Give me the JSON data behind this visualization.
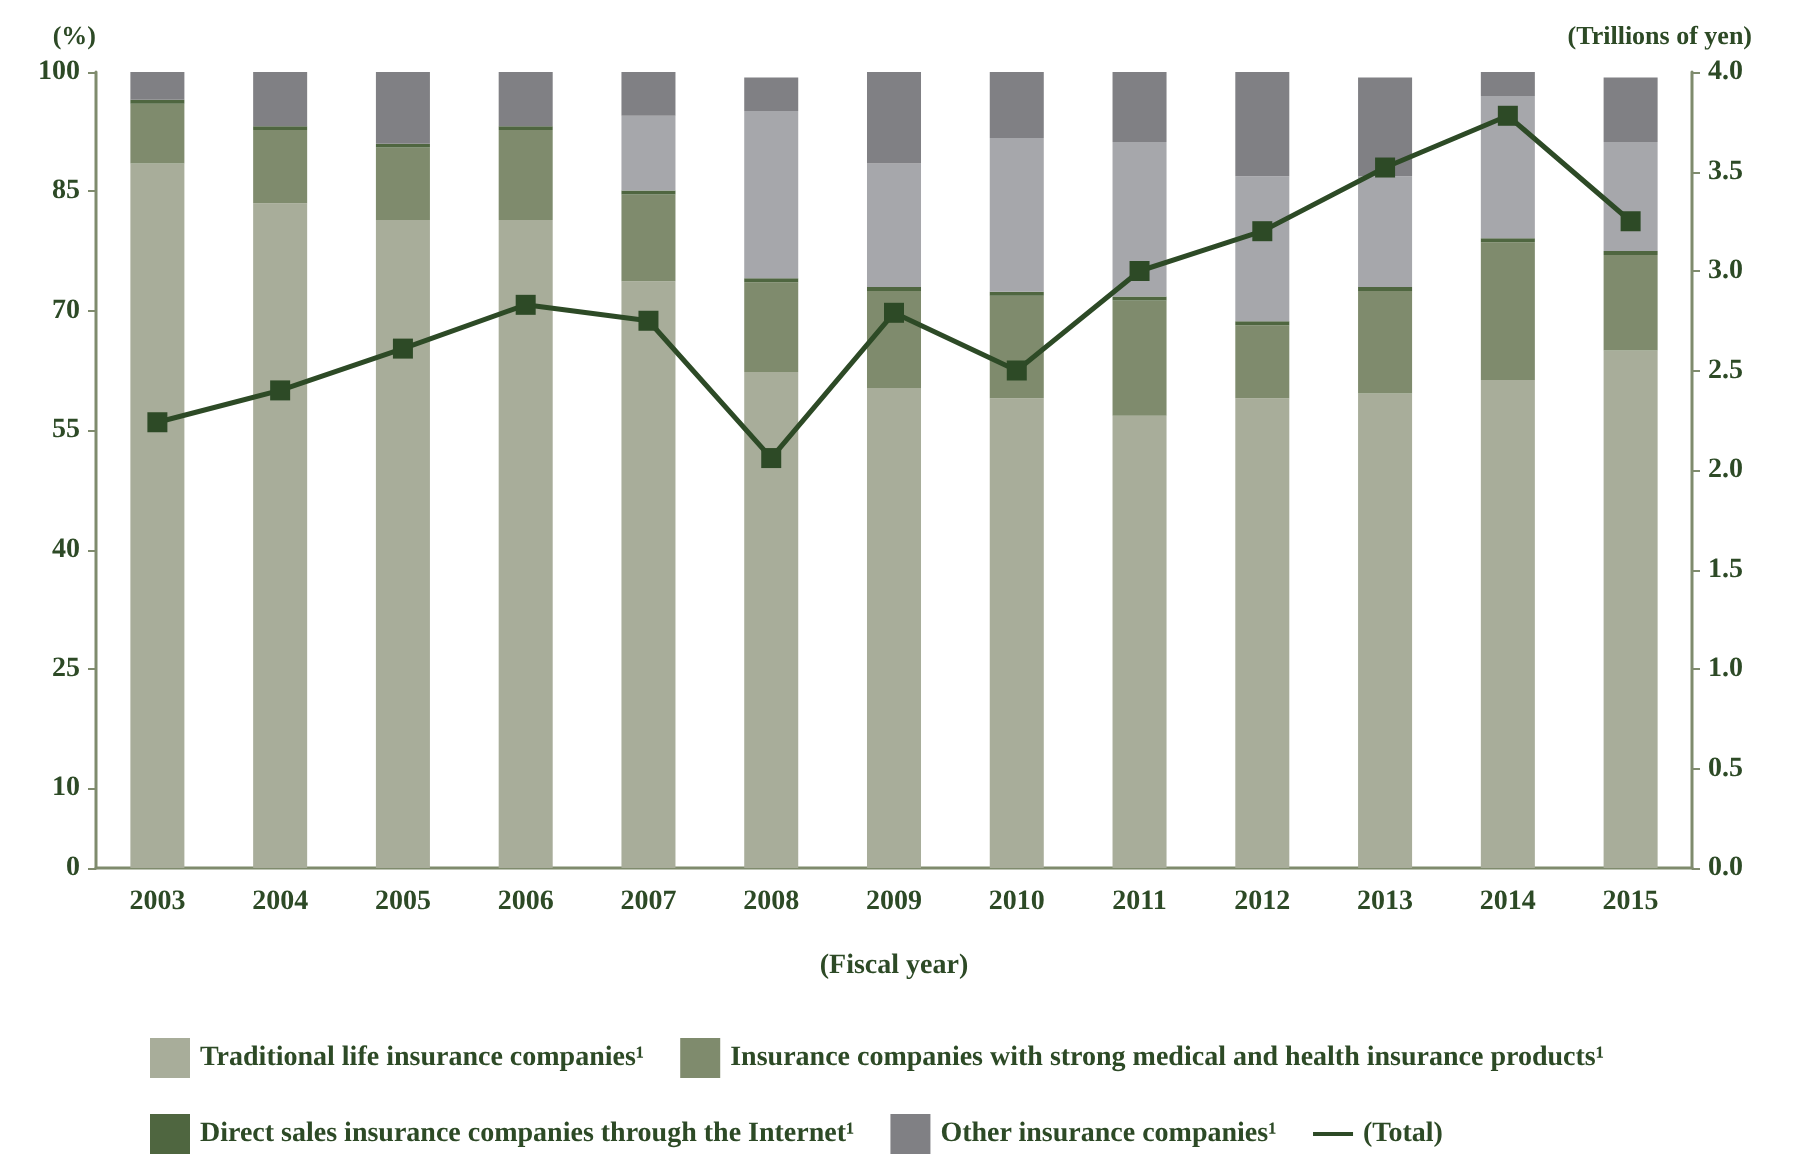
{
  "chart_data": {
    "type": "bar",
    "stacked": true,
    "xlabel": "(Fiscal year)",
    "ylabel": "(%)",
    "y2label": "(Trillions of yen)",
    "categories": [
      "2003",
      "2004",
      "2005",
      "2006",
      "2007",
      "2008",
      "2009",
      "2010",
      "2011",
      "2012",
      "2013",
      "2014",
      "2015"
    ],
    "series": [
      {
        "name": "Traditional life insurance companies¹",
        "color": "#a8ad9a",
        "values": [
          88.5,
          83.5,
          81.4,
          81.4,
          73.7,
          62.3,
          60.3,
          59.0,
          56.8,
          59.0,
          59.6,
          61.3,
          65.0
        ]
      },
      {
        "name": "Insurance companies with strong medical and health insurance products¹",
        "color": "#7f8b6d",
        "values": [
          7.5,
          9.2,
          9.1,
          11.3,
          10.9,
          11.3,
          12.2,
          12.9,
          14.5,
          9.2,
          12.9,
          17.3,
          12.0
        ]
      },
      {
        "name": "Direct sales insurance companies through the Internet¹",
        "color": "#4f6640",
        "values": [
          0.5,
          0.5,
          0.5,
          0.5,
          0.5,
          0.5,
          0.5,
          0.5,
          0.5,
          0.5,
          0.5,
          0.5,
          0.5
        ]
      },
      {
        "color": "#a6a7ab",
        "values": [
          0,
          0,
          0,
          0,
          9.4,
          21.0,
          15.5,
          19.3,
          19.4,
          18.2,
          13.9,
          17.9,
          13.7
        ]
      },
      {
        "name": "Other insurance companies¹",
        "color": "#808084",
        "values": [
          3.5,
          6.8,
          9.0,
          6.8,
          5.5,
          4.2,
          11.5,
          8.3,
          8.8,
          13.1,
          12.4,
          3.0,
          8.1
        ]
      },
      {
        "name": "(Total)",
        "type": "line",
        "axis": "y2",
        "color": "#2d4a26",
        "marker": "square",
        "values": [
          2.24,
          2.4,
          2.61,
          2.83,
          2.75,
          2.06,
          2.79,
          2.5,
          3.0,
          3.2,
          3.52,
          3.78,
          3.25
        ]
      }
    ],
    "ylim": [
      0,
      100
    ],
    "yticks": [
      0,
      10,
      25,
      40,
      55,
      70,
      85,
      100
    ],
    "y2lim": [
      0,
      4
    ],
    "y2ticks": [
      {
        "value": 0,
        "label": "0.0"
      },
      {
        "value": 0.5,
        "label": "0.5"
      },
      {
        "value": 1,
        "label": "1.0"
      },
      {
        "value": 1.5,
        "label": "1.5"
      },
      {
        "value": 2,
        "label": "2.0"
      },
      {
        "value": 2.5,
        "label": "2.5"
      },
      {
        "value": 3,
        "label": "3.0"
      },
      {
        "value": 3.5,
        "label": "3.5"
      },
      {
        "value": 4,
        "label": "4.0"
      }
    ],
    "grid": false,
    "legend": "bottom"
  }
}
